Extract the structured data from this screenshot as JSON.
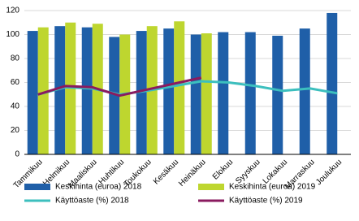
{
  "chart_data": {
    "type": "bar",
    "categories": [
      "Tammikuu",
      "Helmikuu",
      "Maaliskuu",
      "Huhtikuu",
      "Toukokuu",
      "Kesäkuu",
      "Heinäkuu",
      "Elokuu",
      "Syyskuu",
      "Lokakuu",
      "Marraskuu",
      "Joulukuu"
    ],
    "series": [
      {
        "name": "Keskihinta (euroa) 2018",
        "type": "bar",
        "color": "#1f5fa8",
        "values": [
          103,
          107,
          106,
          98,
          103,
          105,
          100,
          102,
          102,
          99,
          105,
          118
        ]
      },
      {
        "name": "Keskihinta (euroa) 2019",
        "type": "bar",
        "color": "#bed62f",
        "values": [
          106,
          110,
          109,
          100,
          107,
          111,
          101,
          null,
          null,
          null,
          null,
          null
        ]
      },
      {
        "name": "Käyttöaste (%) 2018",
        "type": "line",
        "color": "#3cbfbe",
        "values": [
          50,
          56,
          55,
          50,
          53,
          57,
          61,
          60,
          57,
          53,
          55,
          51
        ]
      },
      {
        "name": "Käyttöaste (%) 2019",
        "type": "line",
        "color": "#8a1b5f",
        "values": [
          50,
          57,
          56,
          49,
          54,
          59,
          64,
          null,
          null,
          null,
          null,
          null
        ]
      }
    ],
    "ylim": [
      0,
      120
    ],
    "yticks": [
      0,
      20,
      40,
      60,
      80,
      100,
      120
    ],
    "grid": true
  }
}
